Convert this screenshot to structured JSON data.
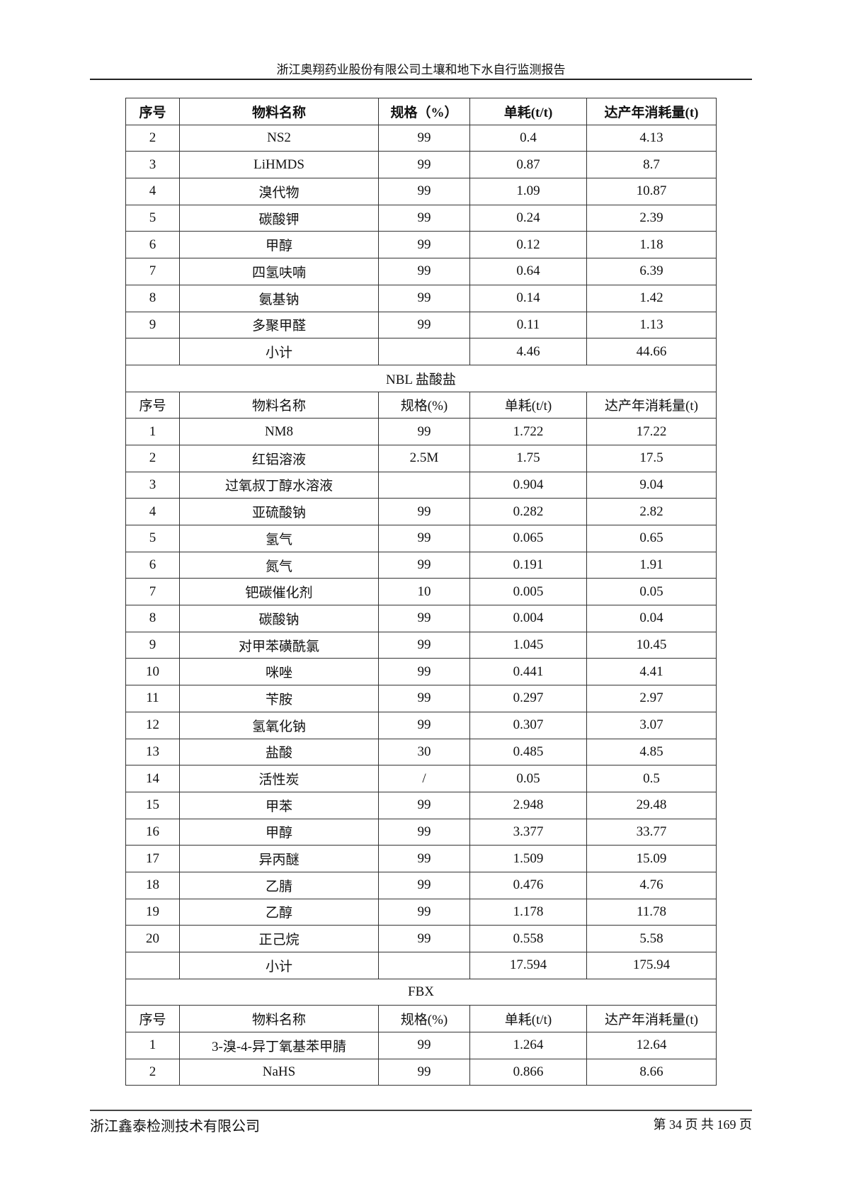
{
  "header": {
    "title": "浙江奥翔药业股份有限公司土壤和地下水自行监测报告"
  },
  "table": {
    "header1": [
      "序号",
      "物料名称",
      "规格（%）",
      "单耗(t/t)",
      "达产年消耗量(t)"
    ],
    "section1_rows": [
      [
        "2",
        "NS2",
        "99",
        "0.4",
        "4.13"
      ],
      [
        "3",
        "LiHMDS",
        "99",
        "0.87",
        "8.7"
      ],
      [
        "4",
        "溴代物",
        "99",
        "1.09",
        "10.87"
      ],
      [
        "5",
        "碳酸钾",
        "99",
        "0.24",
        "2.39"
      ],
      [
        "6",
        "甲醇",
        "99",
        "0.12",
        "1.18"
      ],
      [
        "7",
        "四氢呋喃",
        "99",
        "0.64",
        "6.39"
      ],
      [
        "8",
        "氨基钠",
        "99",
        "0.14",
        "1.42"
      ],
      [
        "9",
        "多聚甲醛",
        "99",
        "0.11",
        "1.13"
      ],
      [
        "",
        "小计",
        "",
        "4.46",
        "44.66"
      ]
    ],
    "section2_title": "NBL 盐酸盐",
    "header2": [
      "序号",
      "物料名称",
      "规格(%)",
      "单耗(t/t)",
      "达产年消耗量(t)"
    ],
    "section2_rows": [
      [
        "1",
        "NM8",
        "99",
        "1.722",
        "17.22"
      ],
      [
        "2",
        "红铝溶液",
        "2.5M",
        "1.75",
        "17.5"
      ],
      [
        "3",
        "过氧叔丁醇水溶液",
        "",
        "0.904",
        "9.04"
      ],
      [
        "4",
        "亚硫酸钠",
        "99",
        "0.282",
        "2.82"
      ],
      [
        "5",
        "氢气",
        "99",
        "0.065",
        "0.65"
      ],
      [
        "6",
        "氮气",
        "99",
        "0.191",
        "1.91"
      ],
      [
        "7",
        "钯碳催化剂",
        "10",
        "0.005",
        "0.05"
      ],
      [
        "8",
        "碳酸钠",
        "99",
        "0.004",
        "0.04"
      ],
      [
        "9",
        "对甲苯磺酰氯",
        "99",
        "1.045",
        "10.45"
      ],
      [
        "10",
        "咪唑",
        "99",
        "0.441",
        "4.41"
      ],
      [
        "11",
        "苄胺",
        "99",
        "0.297",
        "2.97"
      ],
      [
        "12",
        "氢氧化钠",
        "99",
        "0.307",
        "3.07"
      ],
      [
        "13",
        "盐酸",
        "30",
        "0.485",
        "4.85"
      ],
      [
        "14",
        "活性炭",
        "/",
        "0.05",
        "0.5"
      ],
      [
        "15",
        "甲苯",
        "99",
        "2.948",
        "29.48"
      ],
      [
        "16",
        "甲醇",
        "99",
        "3.377",
        "33.77"
      ],
      [
        "17",
        "异丙醚",
        "99",
        "1.509",
        "15.09"
      ],
      [
        "18",
        "乙腈",
        "99",
        "0.476",
        "4.76"
      ],
      [
        "19",
        "乙醇",
        "99",
        "1.178",
        "11.78"
      ],
      [
        "20",
        "正己烷",
        "99",
        "0.558",
        "5.58"
      ],
      [
        "",
        "小计",
        "",
        "17.594",
        "175.94"
      ]
    ],
    "section3_title": "FBX",
    "header3": [
      "序号",
      "物料名称",
      "规格(%)",
      "单耗(t/t)",
      "达产年消耗量(t)"
    ],
    "section3_rows": [
      [
        "1",
        "3-溴-4-异丁氧基苯甲腈",
        "99",
        "1.264",
        "12.64"
      ],
      [
        "2",
        "NaHS",
        "99",
        "0.866",
        "8.66"
      ]
    ]
  },
  "footer": {
    "company": "浙江鑫泰检测技术有限公司",
    "page": "第 34 页 共 169 页"
  }
}
